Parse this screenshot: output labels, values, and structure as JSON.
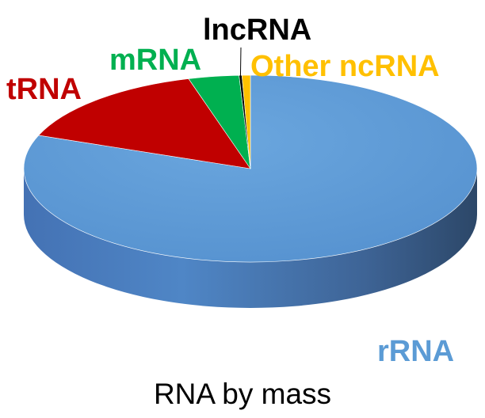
{
  "chart_data": {
    "type": "pie",
    "title": "RNA by mass",
    "style": "3d",
    "slices": [
      {
        "label": "rRNA",
        "value": 80.8,
        "color": "#5B9BD5"
      },
      {
        "label": "tRNA",
        "value": 14.8,
        "color": "#C00000"
      },
      {
        "label": "mRNA",
        "value": 3.6,
        "color": "#00B050"
      },
      {
        "label": "lncRNA",
        "value": 0.2,
        "color": "#000000"
      },
      {
        "label": "Other ncRNA",
        "value": 0.6,
        "color": "#FFC000"
      }
    ]
  }
}
